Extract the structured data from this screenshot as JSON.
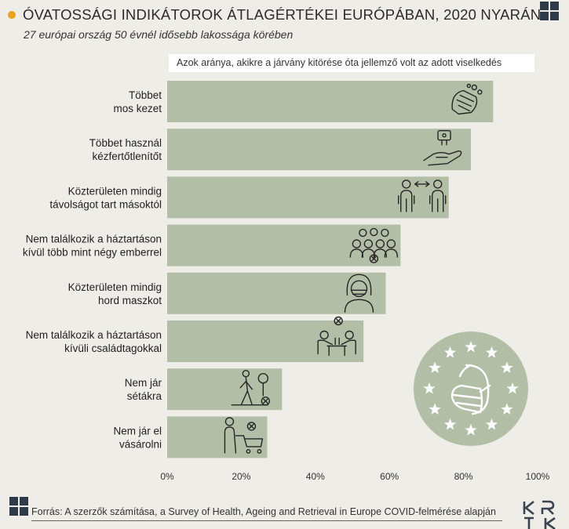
{
  "header": {
    "title": "ÓVATOSSÁGI INDIKÁTOROK ÁTLAGÉRTÉKEI EURÓPÁBAN, 2020 NYARÁN",
    "subtitle": "27 európai ország 50 évnél idősebb lakossága körében"
  },
  "chart_data": {
    "type": "bar",
    "orientation": "horizontal",
    "series_label": "Azok aránya, akikre a járvány kitörése óta jellemző volt az adott viselkedés",
    "categories": [
      "Többet\nmos kezet",
      "Többet használ\nkézfertőtlenítőt",
      "Közterületen mindig\ntávolságot tart másoktól",
      "Nem találkozik a háztartáson\nkívül több mint négy emberrel",
      "Közterületen mindig\nhord maszkot",
      "Nem találkozik a háztartáson\nkívüli családtagokkal",
      "Nem jár\nsétákra",
      "Nem jár el\nvásárolni"
    ],
    "values": [
      88,
      82,
      76,
      63,
      59,
      53,
      31,
      27
    ],
    "xlim": [
      0,
      100
    ],
    "xticks": [
      "0%",
      "20%",
      "40%",
      "60%",
      "80%",
      "100%"
    ],
    "icons": [
      "hand-washing-icon",
      "hand-sanitizer-icon",
      "social-distance-icon",
      "group-of-people-icon",
      "face-mask-person-icon",
      "family-meeting-icon",
      "walking-person-icon",
      "shopping-cart-icon"
    ],
    "bar_color": "#b3bea7",
    "accent_color": "#e8a21c"
  },
  "footer": {
    "source": "Forrás: A szerzők számítása, a Survey of Health, Ageing and Retrieval in Europe COVID-felmérése alapján"
  }
}
